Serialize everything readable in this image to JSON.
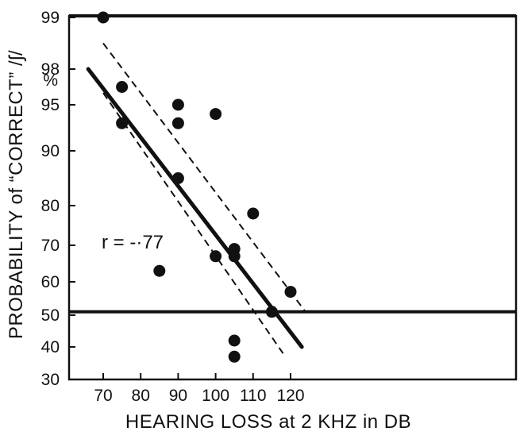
{
  "chart_data": {
    "type": "scatter",
    "title": "",
    "xlabel": "HEARING LOSS at 2 KHZ in DB",
    "ylabel": "PROBABILITY of “CORRECT” /ʃ/",
    "y_unit_label": "%",
    "y_scale": "probability",
    "xlim": [
      66,
      126
    ],
    "ylim": [
      30,
      99
    ],
    "x_ticks": [
      70,
      80,
      90,
      100,
      110,
      120
    ],
    "y_ticks": [
      99,
      98,
      95,
      90,
      80,
      70,
      60,
      50,
      40,
      30
    ],
    "grid": false,
    "annotation": "r = -·77",
    "points": [
      {
        "x": 70,
        "y": 99
      },
      {
        "x": 75,
        "y": 96.5
      },
      {
        "x": 75,
        "y": 93
      },
      {
        "x": 85,
        "y": 63
      },
      {
        "x": 90,
        "y": 95
      },
      {
        "x": 90,
        "y": 93
      },
      {
        "x": 90,
        "y": 85
      },
      {
        "x": 100,
        "y": 94
      },
      {
        "x": 100,
        "y": 67
      },
      {
        "x": 105,
        "y": 69
      },
      {
        "x": 105,
        "y": 67
      },
      {
        "x": 105,
        "y": 42
      },
      {
        "x": 105,
        "y": 37
      },
      {
        "x": 110,
        "y": 78
      },
      {
        "x": 115,
        "y": 51
      },
      {
        "x": 120,
        "y": 57
      }
    ],
    "regression_line": {
      "x": [
        66,
        123
      ],
      "y": [
        98,
        40
      ]
    },
    "confidence_band_upper": {
      "x": [
        70,
        124
      ],
      "y": [
        98.5,
        51
      ]
    },
    "confidence_band_lower": {
      "x": [
        70,
        118
      ],
      "y": [
        96,
        38
      ]
    },
    "reference_line_y": 51
  }
}
